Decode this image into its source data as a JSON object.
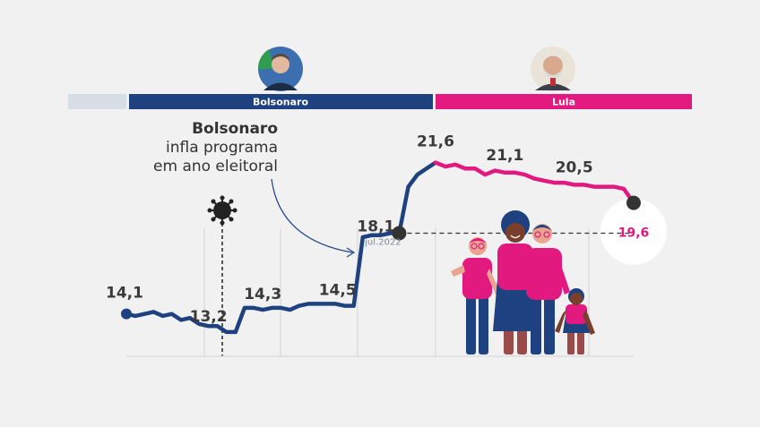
{
  "chart_data": {
    "type": "line",
    "title": "",
    "xlabel": "",
    "ylabel": "",
    "ylim": [
      12,
      23
    ],
    "periods": [
      {
        "name": "Bolsonaro",
        "color": "#1e4280"
      },
      {
        "name": "Lula",
        "color": "#e2197f"
      }
    ],
    "annotation": {
      "title": "Bolsonaro",
      "line1": "infla programa",
      "line2": "em ano eleitoral"
    },
    "highlight": {
      "label": "jul.2022"
    },
    "series": [
      {
        "segment": "Bolsonaro",
        "color": "#1e4280",
        "values": [
          14.1,
          14.0,
          14.1,
          14.2,
          14.0,
          14.1,
          13.8,
          13.9,
          13.6,
          13.5,
          13.5,
          13.2,
          13.2,
          14.4,
          14.4,
          14.3,
          14.4,
          14.4,
          14.3,
          14.5,
          14.6,
          14.6,
          14.6,
          14.6,
          14.5,
          14.5,
          17.9,
          18.0,
          18.0,
          18.1,
          18.1,
          20.4,
          21.0,
          21.3,
          21.6
        ]
      },
      {
        "segment": "Lula",
        "color": "#e2197f",
        "values": [
          21.6,
          21.4,
          21.5,
          21.3,
          21.3,
          21.0,
          21.2,
          21.1,
          21.1,
          21.0,
          20.8,
          20.7,
          20.6,
          20.6,
          20.5,
          20.5,
          20.4,
          20.4,
          20.4,
          20.3,
          19.6
        ]
      }
    ],
    "data_labels": [
      {
        "series": 0,
        "index": 0,
        "text": "14,1"
      },
      {
        "series": 0,
        "index": 11,
        "text": "13,2"
      },
      {
        "series": 0,
        "index": 15,
        "text": "14,3"
      },
      {
        "series": 0,
        "index": 25,
        "text": "14,5"
      },
      {
        "series": 0,
        "index": 30,
        "text": "18,1"
      },
      {
        "series": 0,
        "index": 34,
        "text": "21,6"
      },
      {
        "series": 1,
        "index": 7,
        "text": "21,1"
      },
      {
        "series": 1,
        "index": 14,
        "text": "20,5"
      },
      {
        "series": 1,
        "index": 20,
        "text": "19,6"
      }
    ],
    "grid": true,
    "legend": "top"
  }
}
